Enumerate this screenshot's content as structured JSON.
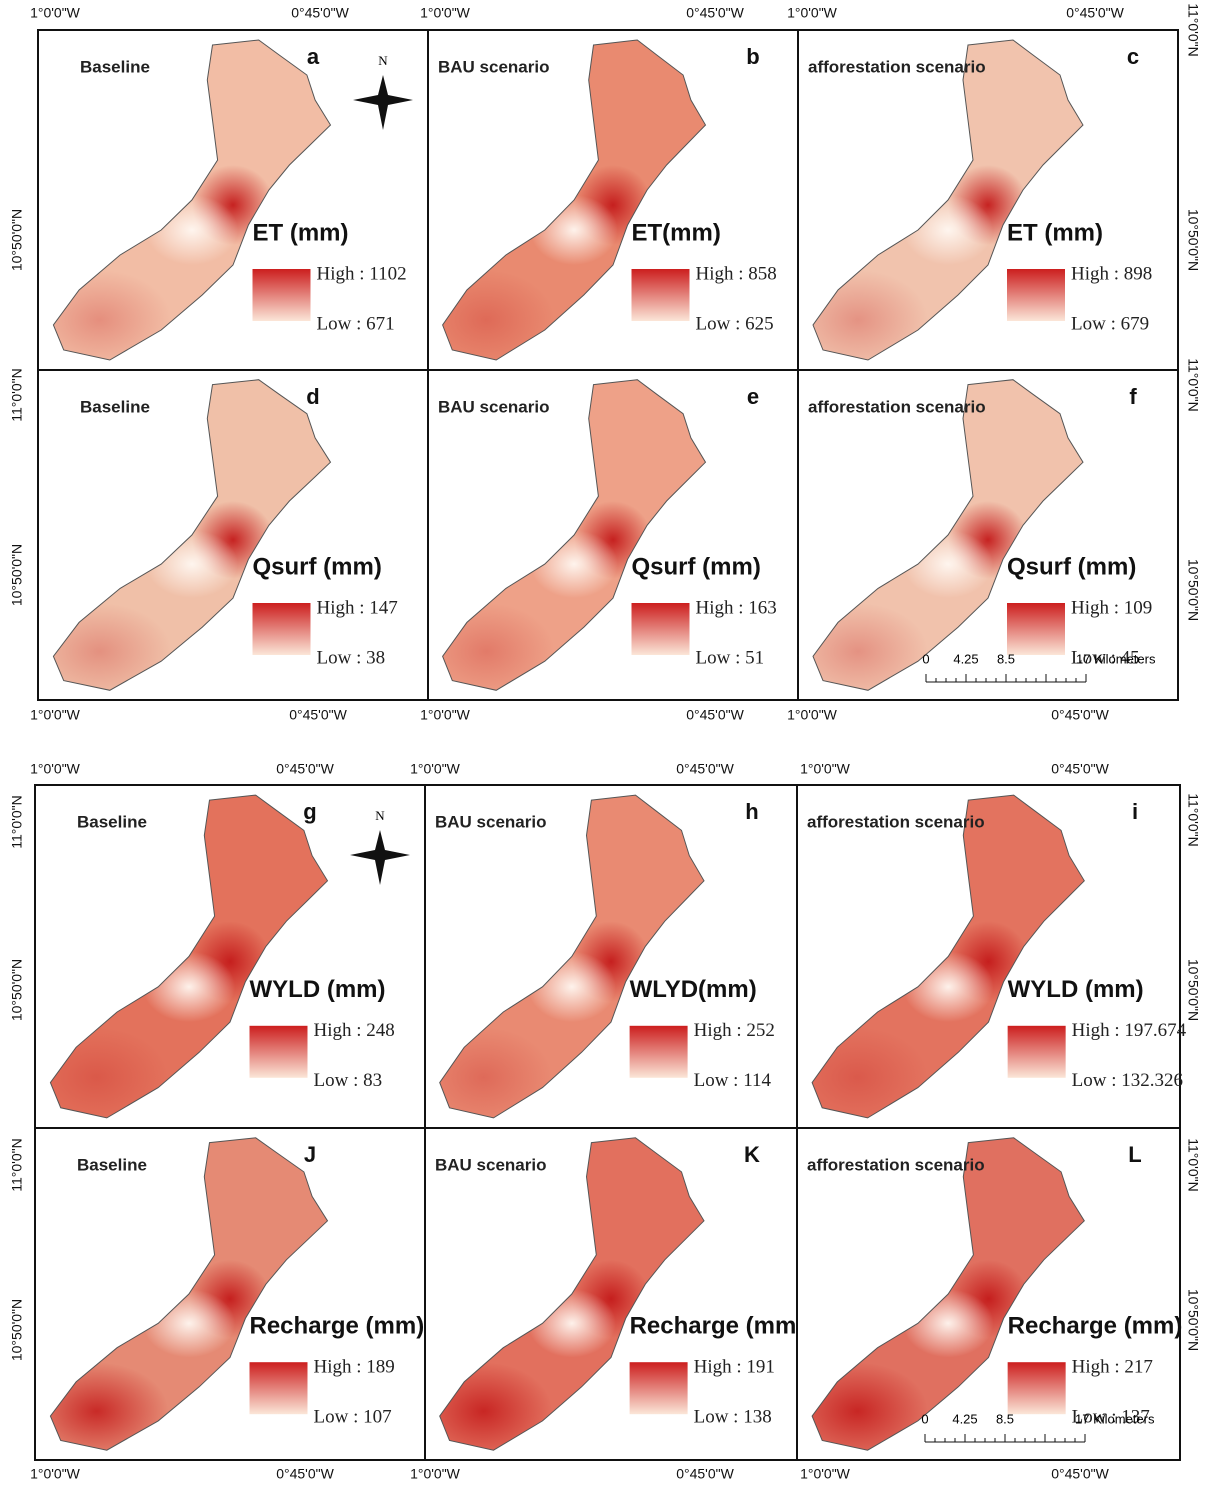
{
  "blocks": [
    {
      "top_labels": [
        "1°0'0\"W",
        "0°45'0\"W",
        "1°0'0\"W",
        "0°45'0\"W",
        "1°0'0\"W",
        "0°45'0\"W"
      ],
      "bottom_labels": [
        "1°0'0\"W",
        "0°45'0\"W",
        "1°0'0\"W",
        "0°45'0\"W",
        "1°0'0\"W",
        "0°45'0\"W"
      ],
      "left_labels": [
        "10°50'0\"N",
        "11°0'0\"N",
        "10°50'0\"N"
      ],
      "right_labels": [
        "11°0'0\"N",
        "10°50'0\"N",
        "11°0'0\"N",
        "10°50'0\"N"
      ],
      "panels": [
        {
          "scenario": "Baseline",
          "letter": "a",
          "variable": "ET (mm)",
          "high": "High : 1102",
          "low": "Low : 671"
        },
        {
          "scenario": "BAU scenario",
          "letter": "b",
          "variable": "ET(mm)",
          "high": "High : 858",
          "low": "Low : 625"
        },
        {
          "scenario": "afforestation scenario",
          "letter": "c",
          "variable": "ET (mm)",
          "high": "High : 898",
          "low": "Low : 679"
        },
        {
          "scenario": "Baseline",
          "letter": "d",
          "variable": "Qsurf (mm)",
          "high": "High : 147",
          "low": "Low : 38"
        },
        {
          "scenario": "BAU scenario",
          "letter": "e",
          "variable": "Qsurf (mm)",
          "high": "High : 163",
          "low": "Low : 51"
        },
        {
          "scenario": "afforestation scenario",
          "letter": "f",
          "variable": "Qsurf (mm)",
          "high": "High : 109",
          "low": "Low : 45"
        }
      ]
    },
    {
      "top_labels": [
        "1°0'0\"W",
        "0°45'0\"W",
        "1°0'0\"W",
        "0°45'0\"W",
        "1°0'0\"W",
        "0°45'0\"W"
      ],
      "bottom_labels": [
        "1°0'0\"W",
        "0°45'0\"W",
        "1°0'0\"W",
        "0°45'0\"W",
        "1°0'0\"W",
        "0°45'0\"W"
      ],
      "left_labels": [
        "11°0'0\"N",
        "10°50'0\"N",
        "11°0'0\"N",
        "10°50'0\"N"
      ],
      "right_labels": [
        "11°0'0\"N",
        "10°50'0\"N",
        "11°0'0\"N",
        "10°50'0\"N"
      ],
      "panels": [
        {
          "scenario": "Baseline",
          "letter": "g",
          "variable": "WYLD (mm)",
          "high": "High : 248",
          "low": "Low : 83"
        },
        {
          "scenario": "BAU scenario",
          "letter": "h",
          "variable": "WLYD(mm)",
          "high": "High : 252",
          "low": "Low : 114"
        },
        {
          "scenario": "afforestation scenario",
          "letter": "i",
          "variable": "WYLD (mm)",
          "high": "High : 197.674",
          "low": "Low : 132.326"
        },
        {
          "scenario": "Baseline",
          "letter": "J",
          "variable": "Recharge (mm)",
          "high": "High : 189",
          "low": "Low : 107"
        },
        {
          "scenario": "BAU scenario",
          "letter": "K",
          "variable": "Recharge (mm)",
          "high": "High : 191",
          "low": "Low : 138"
        },
        {
          "scenario": "afforestation scenario",
          "letter": "L",
          "variable": "Recharge (mm)",
          "high": "High : 217",
          "low": "Low : 137"
        }
      ]
    }
  ],
  "north": "N",
  "scale_bar": [
    "0",
    "4.25",
    "8.5",
    "17 Kilometers"
  ]
}
